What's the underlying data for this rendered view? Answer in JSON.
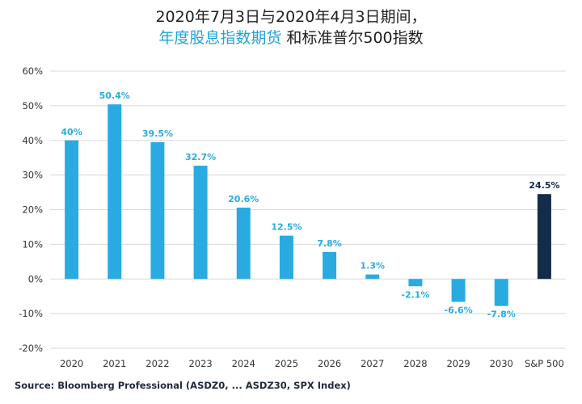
{
  "title": {
    "line1": "2020年7月3日与2020年4月3日期间，",
    "line2_accent": "年度股息指数期货",
    "line2_rest": " 和标准普尔500指数"
  },
  "source": "Source: Bloomberg Professional (ASDZ0, ... ASDZ30, SPX Index)",
  "colors": {
    "bar": "#29abe2",
    "bar_sp500": "#132c4a",
    "label": "#29abe2",
    "label_sp500": "#132c4a",
    "grid": "#d8d8d8"
  },
  "chart_data": {
    "type": "bar",
    "categories": [
      "2020",
      "2021",
      "2022",
      "2023",
      "2024",
      "2025",
      "2026",
      "2027",
      "2028",
      "2029",
      "2030",
      "S&P 500"
    ],
    "values": [
      40,
      50.4,
      39.5,
      32.7,
      20.6,
      12.5,
      7.8,
      1.3,
      -2.1,
      -6.6,
      -7.8,
      24.5
    ],
    "data_labels": [
      "40%",
      "50.4%",
      "39.5%",
      "32.7%",
      "20.6%",
      "12.5%",
      "7.8%",
      "1.3%",
      "-2.1%",
      "-6.6%",
      "-7.8%",
      "24.5%"
    ],
    "yticks": [
      60,
      50,
      40,
      30,
      20,
      10,
      0,
      -10,
      -20
    ],
    "ytick_labels": [
      "60%",
      "50%",
      "40%",
      "30%",
      "20%",
      "10%",
      "0%",
      "-10%",
      "-20%"
    ],
    "ylim": [
      -20,
      60
    ],
    "grid": true,
    "highlight_category": "S&P 500"
  }
}
